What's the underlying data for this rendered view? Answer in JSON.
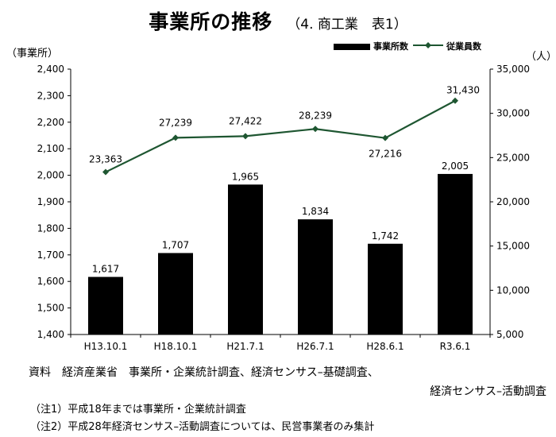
{
  "title": {
    "main": "事業所の推移",
    "sub": "（4. 商工業　表1）"
  },
  "chart_data": {
    "type": "bar+line",
    "categories": [
      "H13.10.1",
      "H18.10.1",
      "H21.7.1",
      "H26.7.1",
      "H28.6.1",
      "R3.6.1"
    ],
    "series": [
      {
        "name": "事業所数",
        "kind": "bar",
        "axis": "left",
        "values": [
          1617,
          1707,
          1965,
          1834,
          1742,
          2005
        ],
        "labels": [
          "1,617",
          "1,707",
          "1,965",
          "1,834",
          "1,742",
          "2,005"
        ]
      },
      {
        "name": "従業員数",
        "kind": "line",
        "axis": "right",
        "values": [
          23363,
          27239,
          27422,
          28239,
          27216,
          31430
        ],
        "labels": [
          "23,363",
          "27,239",
          "27,422",
          "28,239",
          "27,216",
          "31,430"
        ]
      }
    ],
    "y_left": {
      "label": "（事業所）",
      "lim": [
        1400,
        2400
      ],
      "ticks": [
        "1,400",
        "1,500",
        "1,600",
        "1,700",
        "1,800",
        "1,900",
        "2,000",
        "2,100",
        "2,200",
        "2,300",
        "2,400"
      ]
    },
    "y_right": {
      "label": "（人）",
      "lim": [
        5000,
        35000
      ],
      "ticks": [
        "5,000",
        "10,000",
        "15,000",
        "20,000",
        "25,000",
        "30,000",
        "35,000"
      ]
    },
    "legend_position": "top-right",
    "grid": false,
    "colors": {
      "bar": "#000000",
      "line": "#1e5631"
    }
  },
  "footer": {
    "source_line1": "資料　経済産業省　事業所・企業統計調査、経済センサス–基礎調査、",
    "source_line2": "経済センサス–活動調査",
    "note1": "（注1）平成18年までは事業所・企業統計調査",
    "note2": "（注2）平成28年経済センサス–活動調査については、民営事業者のみ集計"
  }
}
